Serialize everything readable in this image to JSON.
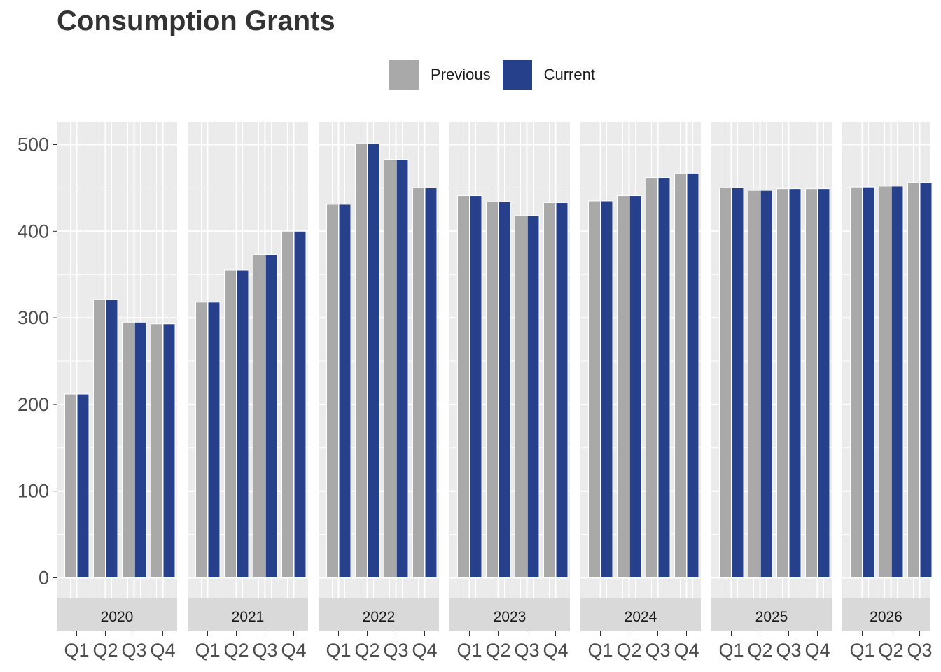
{
  "chart_data": {
    "type": "bar",
    "title": "Consumption Grants",
    "xlabel": "",
    "ylabel": "",
    "ylim": [
      -60,
      540
    ],
    "yticks": [
      0,
      100,
      200,
      300,
      400,
      500
    ],
    "legend_position": "top",
    "series": [
      {
        "name": "Previous",
        "color": "#a9a9a9"
      },
      {
        "name": "Current",
        "color": "#27408b"
      }
    ],
    "facets": [
      {
        "label": "2020",
        "quarters": [
          "Q1",
          "Q2",
          "Q3",
          "Q4"
        ],
        "previous": [
          212,
          321,
          295,
          293
        ],
        "current": [
          212,
          321,
          295,
          293
        ]
      },
      {
        "label": "2021",
        "quarters": [
          "Q1",
          "Q2",
          "Q3",
          "Q4"
        ],
        "previous": [
          318,
          355,
          373,
          400
        ],
        "current": [
          318,
          355,
          373,
          400
        ]
      },
      {
        "label": "2022",
        "quarters": [
          "Q1",
          "Q2",
          "Q3",
          "Q4"
        ],
        "previous": [
          431,
          501,
          483,
          450
        ],
        "current": [
          431,
          501,
          483,
          450
        ]
      },
      {
        "label": "2023",
        "quarters": [
          "Q1",
          "Q2",
          "Q3",
          "Q4"
        ],
        "previous": [
          441,
          434,
          418,
          433
        ],
        "current": [
          441,
          434,
          418,
          433
        ]
      },
      {
        "label": "2024",
        "quarters": [
          "Q1",
          "Q2",
          "Q3",
          "Q4"
        ],
        "previous": [
          435,
          441,
          462,
          467
        ],
        "current": [
          435,
          441,
          462,
          467
        ]
      },
      {
        "label": "2025",
        "quarters": [
          "Q1",
          "Q2",
          "Q3",
          "Q4"
        ],
        "previous": [
          450,
          447,
          449,
          449
        ],
        "current": [
          450,
          447,
          449,
          449
        ]
      },
      {
        "label": "2026",
        "quarters": [
          "Q1",
          "Q2",
          "Q3"
        ],
        "previous": [
          451,
          452,
          456
        ],
        "current": [
          451,
          452,
          456
        ]
      }
    ]
  }
}
